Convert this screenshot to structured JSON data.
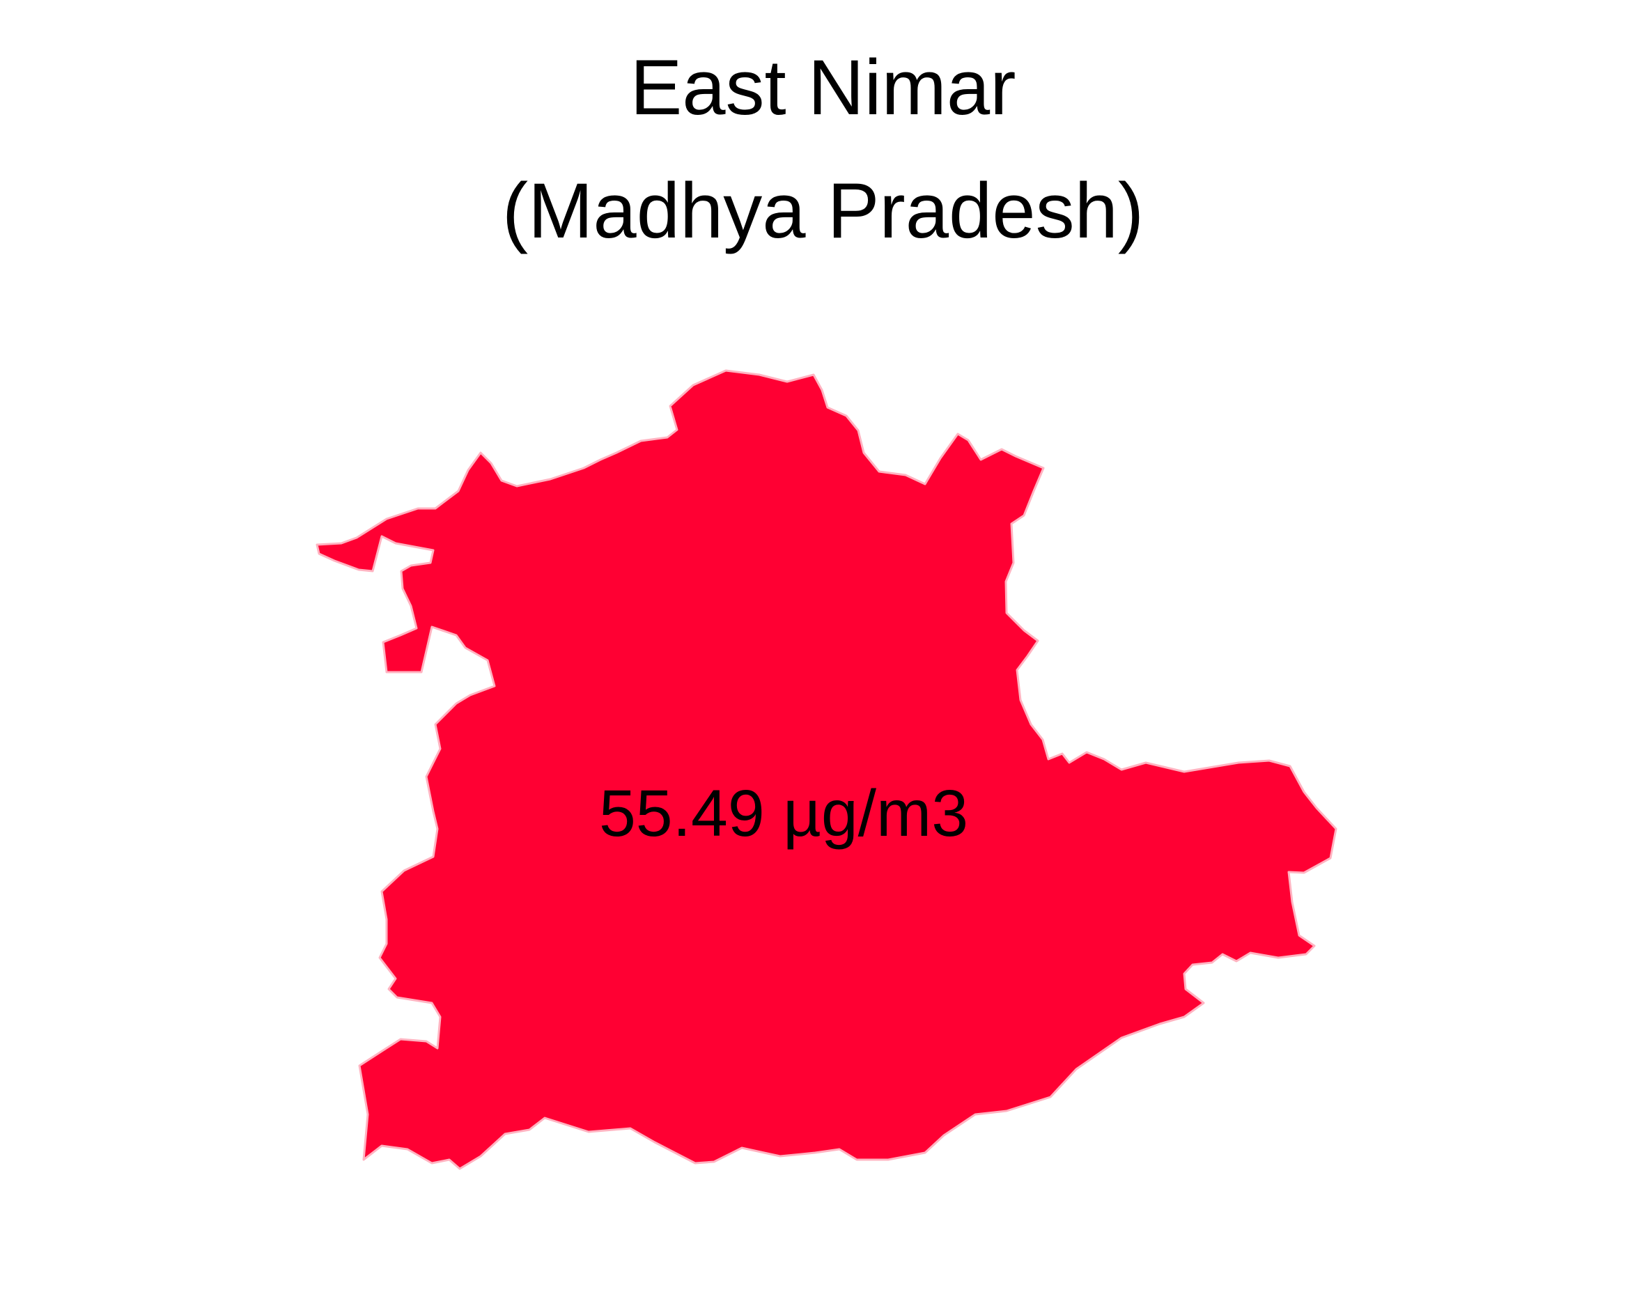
{
  "title": {
    "line1": "East Nimar",
    "line2": "(Madhya Pradesh)"
  },
  "region": {
    "name": "East Nimar",
    "state": "Madhya Pradesh",
    "fill_color": "#ff0033",
    "border_color": "#ffb3c1"
  },
  "value_label": "55.49 µg/m3"
}
